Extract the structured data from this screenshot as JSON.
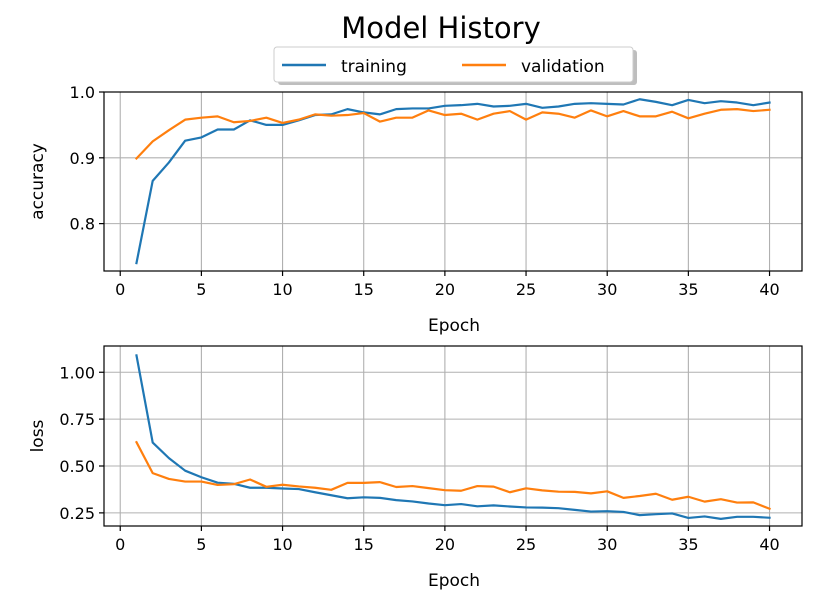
{
  "chart_data": {
    "type": "line",
    "title": "Model History",
    "legend": {
      "placement": "top-center",
      "entries": [
        "training",
        "validation"
      ]
    },
    "colors": {
      "training": "#1f77b4",
      "validation": "#ff7f0e",
      "grid": "#b0b0b0",
      "axes": "#000000"
    },
    "grid": true,
    "subplots": [
      {
        "name": "accuracy",
        "xlabel": "Epoch",
        "ylabel": "accuracy",
        "xlim": [
          -1.0,
          42.0
        ],
        "ylim": [
          0.728,
          1.0
        ],
        "xticks": [
          0,
          5,
          10,
          15,
          20,
          25,
          30,
          35,
          40
        ],
        "xtick_labels": [
          "0",
          "5",
          "10",
          "15",
          "20",
          "25",
          "30",
          "35",
          "40"
        ],
        "yticks": [
          0.8,
          0.9,
          1.0
        ],
        "ytick_labels": [
          "0.8",
          "0.9",
          "1.0"
        ],
        "x": [
          1,
          2,
          3,
          4,
          5,
          6,
          7,
          8,
          9,
          10,
          11,
          12,
          13,
          14,
          15,
          16,
          17,
          18,
          19,
          20,
          21,
          22,
          23,
          24,
          25,
          26,
          27,
          28,
          29,
          30,
          31,
          32,
          33,
          34,
          35,
          36,
          37,
          38,
          39,
          40
        ],
        "series": [
          {
            "name": "training",
            "values": [
              0.74,
              0.865,
              0.893,
              0.926,
              0.931,
              0.943,
              0.943,
              0.957,
              0.95,
              0.95,
              0.957,
              0.965,
              0.966,
              0.974,
              0.969,
              0.966,
              0.974,
              0.975,
              0.975,
              0.979,
              0.98,
              0.982,
              0.978,
              0.979,
              0.982,
              0.976,
              0.978,
              0.982,
              0.983,
              0.982,
              0.981,
              0.989,
              0.985,
              0.98,
              0.988,
              0.983,
              0.986,
              0.984,
              0.98,
              0.984
            ]
          },
          {
            "name": "validation",
            "values": [
              0.899,
              0.925,
              0.942,
              0.958,
              0.961,
              0.963,
              0.954,
              0.956,
              0.961,
              0.953,
              0.958,
              0.966,
              0.964,
              0.965,
              0.968,
              0.955,
              0.961,
              0.961,
              0.972,
              0.965,
              0.967,
              0.958,
              0.967,
              0.971,
              0.958,
              0.969,
              0.967,
              0.961,
              0.972,
              0.963,
              0.971,
              0.963,
              0.963,
              0.97,
              0.96,
              0.967,
              0.973,
              0.974,
              0.971,
              0.973
            ]
          }
        ]
      },
      {
        "name": "loss",
        "xlabel": "Epoch",
        "ylabel": "loss",
        "xlim": [
          -1.0,
          42.0
        ],
        "ylim": [
          0.18,
          1.14
        ],
        "xticks": [
          0,
          5,
          10,
          15,
          20,
          25,
          30,
          35,
          40
        ],
        "xtick_labels": [
          "0",
          "5",
          "10",
          "15",
          "20",
          "25",
          "30",
          "35",
          "40"
        ],
        "yticks": [
          0.25,
          0.5,
          0.75,
          1.0
        ],
        "ytick_labels": [
          "0.25",
          "0.50",
          "0.75",
          "1.00"
        ],
        "x": [
          1,
          2,
          3,
          4,
          5,
          6,
          7,
          8,
          9,
          10,
          11,
          12,
          13,
          14,
          15,
          16,
          17,
          18,
          19,
          20,
          21,
          22,
          23,
          24,
          25,
          26,
          27,
          28,
          29,
          30,
          31,
          32,
          33,
          34,
          35,
          36,
          37,
          38,
          39,
          40
        ],
        "series": [
          {
            "name": "training",
            "values": [
              1.09,
              0.625,
              0.542,
              0.475,
              0.44,
              0.411,
              0.405,
              0.384,
              0.384,
              0.38,
              0.377,
              0.36,
              0.344,
              0.328,
              0.333,
              0.33,
              0.318,
              0.311,
              0.3,
              0.291,
              0.297,
              0.285,
              0.29,
              0.284,
              0.279,
              0.278,
              0.275,
              0.266,
              0.257,
              0.259,
              0.255,
              0.238,
              0.243,
              0.247,
              0.223,
              0.231,
              0.218,
              0.229,
              0.229,
              0.224
            ]
          },
          {
            "name": "validation",
            "values": [
              0.627,
              0.462,
              0.431,
              0.417,
              0.417,
              0.399,
              0.403,
              0.428,
              0.389,
              0.4,
              0.391,
              0.384,
              0.373,
              0.41,
              0.41,
              0.414,
              0.388,
              0.393,
              0.382,
              0.371,
              0.368,
              0.393,
              0.39,
              0.36,
              0.381,
              0.37,
              0.363,
              0.362,
              0.354,
              0.365,
              0.33,
              0.34,
              0.352,
              0.32,
              0.336,
              0.31,
              0.323,
              0.305,
              0.306,
              0.272
            ]
          }
        ]
      }
    ]
  }
}
